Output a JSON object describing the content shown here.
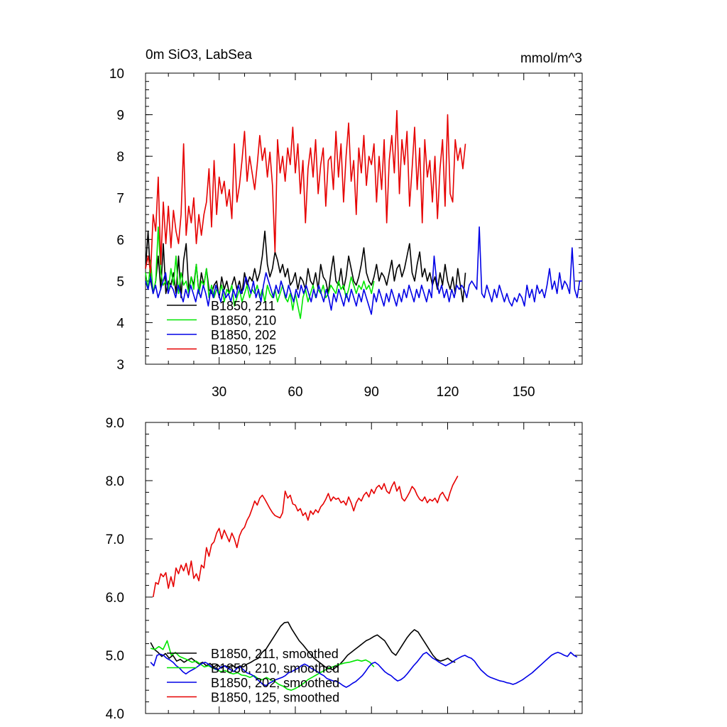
{
  "chart_data": [
    {
      "type": "line",
      "title": "0m SiO3, LabSea",
      "units": "mmol/m^3",
      "ylim": [
        3,
        10
      ],
      "xlim": [
        1,
        173
      ],
      "yticks": [
        "3",
        "4",
        "5",
        "6",
        "7",
        "8",
        "9",
        "10"
      ],
      "xticks": [
        "30",
        "60",
        "90",
        "120",
        "150"
      ],
      "legend_position": "bottom-left",
      "series": [
        {
          "name": "B1850, 211",
          "color": "#000000",
          "x_start": 1,
          "x_end": 127,
          "values": [
            5.3,
            6.2,
            5.0,
            4.7,
            5.0,
            5.6,
            4.8,
            5.9,
            4.7,
            5.0,
            4.9,
            5.2,
            4.7,
            5.6,
            4.6,
            5.5,
            5.9,
            4.8,
            5.1,
            4.9,
            5.4,
            4.7,
            5.2,
            4.9,
            5.3,
            4.8,
            4.7,
            4.9,
            5.0,
            4.6,
            5.1,
            4.8,
            5.0,
            4.7,
            4.9,
            5.1,
            4.8,
            5.0,
            4.7,
            5.2,
            4.9,
            5.1,
            5.0,
            5.3,
            5.0,
            5.2,
            5.6,
            6.2,
            5.4,
            5.1,
            5.3,
            5.7,
            5.5,
            5.2,
            5.4,
            5.1,
            5.3,
            4.9,
            5.0,
            5.2,
            4.8,
            5.1,
            5.0,
            4.8,
            5.3,
            5.0,
            4.9,
            5.2,
            4.8,
            5.4,
            5.1,
            5.0,
            4.7,
            5.2,
            5.6,
            5.0,
            4.9,
            5.3,
            4.8,
            5.1,
            5.6,
            5.3,
            5.0,
            4.9,
            5.1,
            5.4,
            5.8,
            5.2,
            5.0,
            4.9,
            5.1,
            5.4,
            5.0,
            5.2,
            5.1,
            4.9,
            5.2,
            5.5,
            5.0,
            5.3,
            5.4,
            5.1,
            5.3,
            5.6,
            5.9,
            5.2,
            5.0,
            5.4,
            5.7,
            5.1,
            5.3,
            5.0,
            5.2,
            4.9,
            5.1,
            4.8,
            5.2,
            4.9,
            5.4,
            5.0,
            4.8,
            5.1,
            4.7,
            5.3,
            4.9,
            4.5,
            5.2
          ]
        },
        {
          "name": "B1850, 210",
          "color": "#00e600",
          "x_start": 1,
          "x_end": 91,
          "values": [
            5.2,
            4.8,
            5.5,
            4.7,
            5.0,
            6.3,
            5.2,
            4.9,
            5.0,
            4.8,
            5.3,
            4.9,
            5.6,
            4.7,
            5.2,
            4.9,
            5.0,
            4.7,
            5.1,
            4.8,
            5.4,
            4.7,
            5.0,
            4.9,
            5.3,
            4.6,
            4.9,
            4.6,
            4.8,
            4.7,
            4.9,
            4.5,
            4.8,
            4.7,
            4.9,
            4.4,
            4.6,
            4.8,
            4.5,
            4.7,
            4.9,
            4.6,
            4.8,
            4.7,
            4.9,
            4.6,
            4.8,
            4.5,
            4.9,
            4.7,
            4.6,
            4.8,
            4.5,
            4.7,
            4.9,
            4.6,
            4.5,
            4.7,
            4.3,
            4.7,
            4.4,
            4.1,
            4.6,
            4.8,
            4.5,
            4.7,
            4.9,
            4.6,
            4.8,
            4.7,
            4.9,
            4.6,
            4.7,
            4.9,
            4.8,
            4.7,
            5.0,
            4.8,
            4.9,
            4.6,
            4.8,
            5.1,
            4.9,
            4.7,
            4.9,
            4.8,
            5.0,
            4.8,
            4.9,
            4.7,
            5.0
          ]
        },
        {
          "name": "B1850, 202",
          "color": "#0000e6",
          "x_start": 1,
          "x_end": 173,
          "values": [
            5.0,
            4.8,
            5.1,
            4.7,
            4.9,
            4.6,
            4.8,
            5.0,
            5.2,
            4.7,
            4.9,
            4.8,
            4.6,
            4.9,
            4.7,
            4.5,
            4.8,
            4.6,
            4.9,
            4.7,
            4.5,
            4.8,
            4.6,
            4.9,
            4.7,
            4.4,
            4.8,
            4.6,
            4.9,
            4.7,
            4.5,
            4.8,
            4.6,
            4.7,
            4.5,
            4.8,
            4.6,
            4.9,
            4.7,
            4.8,
            5.1,
            4.9,
            4.7,
            5.0,
            4.6,
            4.8,
            4.5,
            4.9,
            5.2,
            5.0,
            4.8,
            4.6,
            4.9,
            4.7,
            5.0,
            4.8,
            4.6,
            4.9,
            4.7,
            4.5,
            4.8,
            4.6,
            4.9,
            4.7,
            4.9,
            4.7,
            4.5,
            4.8,
            4.6,
            4.9,
            4.7,
            4.5,
            4.8,
            4.6,
            4.3,
            4.7,
            4.5,
            4.8,
            4.6,
            4.4,
            4.7,
            4.5,
            4.8,
            4.6,
            4.4,
            4.7,
            4.5,
            4.8,
            4.6,
            4.4,
            4.2,
            4.7,
            4.5,
            4.8,
            4.6,
            4.4,
            4.7,
            4.5,
            4.8,
            4.6,
            4.4,
            4.7,
            4.5,
            4.8,
            4.6,
            4.9,
            4.7,
            4.5,
            4.8,
            4.6,
            4.9,
            4.7,
            4.5,
            4.8,
            4.6,
            5.6,
            5.0,
            4.7,
            4.9,
            4.6,
            4.8,
            4.5,
            4.8,
            4.6,
            4.9,
            4.8,
            4.9,
            4.8,
            4.6,
            4.9,
            5.0,
            4.9,
            4.8,
            6.3,
            4.7,
            4.6,
            4.9,
            4.7,
            4.5,
            4.8,
            4.6,
            4.9,
            4.7,
            4.5,
            4.7,
            4.5,
            4.4,
            4.6,
            4.5,
            4.7,
            4.6,
            4.4,
            4.9,
            4.6,
            4.8,
            4.5,
            4.9,
            4.7,
            4.8,
            4.6,
            4.9,
            5.3,
            4.8,
            5.0,
            4.7,
            5.2,
            4.8,
            5.0,
            4.9,
            4.7,
            5.8,
            4.8,
            4.6,
            5.0,
            5.0
          ]
        },
        {
          "name": "B1850, 125",
          "color": "#e60000",
          "x_start": 1,
          "x_end": 127,
          "values": [
            5.3,
            5.6,
            5.2,
            6.6,
            6.2,
            7.5,
            5.4,
            6.9,
            5.9,
            6.8,
            5.8,
            6.7,
            6.2,
            5.9,
            6.6,
            8.3,
            6.1,
            6.8,
            6.4,
            7.0,
            5.9,
            6.6,
            6.1,
            6.6,
            6.9,
            7.7,
            6.3,
            7.9,
            6.6,
            7.5,
            7.1,
            7.4,
            6.8,
            7.2,
            6.5,
            8.3,
            6.9,
            7.3,
            7.9,
            8.6,
            7.4,
            8.0,
            7.6,
            7.2,
            7.8,
            8.5,
            7.9,
            8.2,
            7.5,
            8.1,
            7.3,
            5.7,
            8.4,
            7.6,
            8.0,
            7.4,
            8.2,
            7.8,
            8.7,
            7.6,
            8.3,
            7.1,
            7.9,
            6.4,
            7.7,
            8.2,
            7.5,
            8.4,
            7.1,
            7.8,
            8.2,
            6.8,
            7.9,
            8.0,
            7.2,
            8.6,
            7.5,
            8.3,
            6.9,
            8.0,
            8.8,
            7.4,
            7.9,
            6.6,
            8.2,
            7.6,
            8.5,
            7.3,
            8.0,
            7.8,
            8.3,
            6.9,
            8.0,
            7.2,
            8.4,
            6.4,
            7.9,
            8.5,
            7.6,
            9.1,
            7.1,
            8.4,
            7.8,
            8.6,
            6.8,
            7.7,
            8.7,
            7.2,
            8.2,
            6.4,
            8.4,
            7.5,
            7.9,
            6.9,
            8.0,
            6.5,
            7.7,
            8.4,
            6.8,
            9.0,
            7.1,
            6.9,
            8.4,
            7.9,
            8.2,
            7.7,
            8.3
          ]
        }
      ]
    },
    {
      "type": "line",
      "ylim": [
        4.0,
        9.0
      ],
      "xlim": [
        1,
        173
      ],
      "yticks": [
        "4.0",
        "5.0",
        "6.0",
        "7.0",
        "8.0",
        "9.0"
      ],
      "legend_position": "bottom-left",
      "series": [
        {
          "name": "B1850, 211, smoothed",
          "color": "#000000",
          "x_start": 3,
          "x_end": 123,
          "values": [
            5.22,
            5.1,
            5.05,
            4.98,
            5.03,
            4.95,
            5.0,
            4.9,
            4.93,
            4.88,
            4.92,
            4.95,
            4.9,
            4.85,
            4.88,
            4.82,
            4.86,
            4.8,
            4.84,
            4.78,
            4.82,
            4.8,
            4.83,
            4.78,
            4.82,
            4.8,
            4.85,
            4.88,
            4.92,
            4.95,
            5.05,
            5.1,
            5.2,
            5.3,
            5.4,
            5.5,
            5.56,
            5.57,
            5.45,
            5.35,
            5.25,
            5.18,
            5.1,
            5.02,
            4.95,
            4.9,
            4.85,
            4.8,
            4.78,
            4.75,
            4.8,
            4.85,
            4.92,
            5.0,
            5.05,
            5.1,
            5.15,
            5.2,
            5.25,
            5.28,
            5.32,
            5.35,
            5.3,
            5.25,
            5.15,
            5.05,
            5.0,
            5.1,
            5.2,
            5.3,
            5.38,
            5.44,
            5.4,
            5.3,
            5.2,
            5.1,
            5.0,
            4.93,
            4.9,
            4.92,
            4.95,
            4.9,
            4.88
          ]
        },
        {
          "name": "B1850, 210, smoothed",
          "color": "#00e600",
          "x_start": 3,
          "x_end": 91,
          "values": [
            5.12,
            5.1,
            5.15,
            5.1,
            5.25,
            5.0,
            5.05,
            4.98,
            4.95,
            4.92,
            4.88,
            4.9,
            4.85,
            4.8,
            4.82,
            4.78,
            4.75,
            4.72,
            4.74,
            4.7,
            4.68,
            4.7,
            4.66,
            4.65,
            4.62,
            4.65,
            4.6,
            4.58,
            4.62,
            4.58,
            4.55,
            4.5,
            4.47,
            4.42,
            4.4,
            4.43,
            4.47,
            4.52,
            4.58,
            4.62,
            4.66,
            4.7,
            4.74,
            4.78,
            4.8,
            4.83,
            4.85,
            4.87,
            4.88,
            4.9,
            4.92,
            4.9,
            4.92,
            4.88,
            4.8
          ]
        },
        {
          "name": "B1850, 202, smoothed",
          "color": "#0000e6",
          "x_start": 3,
          "x_end": 171,
          "values": [
            4.88,
            4.82,
            5.0,
            5.02,
            5.0,
            4.95,
            4.92,
            4.88,
            4.82,
            4.78,
            4.72,
            4.68,
            4.72,
            4.75,
            4.78,
            4.82,
            4.86,
            4.88,
            4.85,
            4.8,
            4.77,
            4.75,
            4.8,
            4.82,
            4.78,
            4.75,
            4.72,
            4.78,
            4.8,
            4.75,
            4.7,
            4.68,
            4.65,
            4.6,
            4.55,
            4.5,
            4.48,
            4.52,
            4.55,
            4.58,
            4.6,
            4.62,
            4.65,
            4.7,
            4.72,
            4.75,
            4.78,
            4.82,
            4.85,
            4.82,
            4.78,
            4.75,
            4.72,
            4.68,
            4.65,
            4.6,
            4.58,
            4.56,
            4.55,
            4.52,
            4.48,
            4.45,
            4.48,
            4.52,
            4.55,
            4.6,
            4.65,
            4.72,
            4.8,
            4.86,
            4.88,
            4.84,
            4.78,
            4.72,
            4.68,
            4.65,
            4.6,
            4.56,
            4.58,
            4.62,
            4.68,
            4.75,
            4.82,
            4.88,
            4.95,
            5.02,
            5.05,
            5.0,
            4.95,
            4.92,
            4.88,
            4.85,
            4.82,
            4.85,
            4.88,
            4.92,
            4.95,
            4.98,
            5.0,
            4.97,
            4.95,
            4.9,
            4.82,
            4.75,
            4.7,
            4.65,
            4.62,
            4.6,
            4.58,
            4.56,
            4.55,
            4.53,
            4.52,
            4.5,
            4.52,
            4.55,
            4.58,
            4.62,
            4.66,
            4.7,
            4.75,
            4.8,
            4.85,
            4.9,
            4.95,
            5.0,
            5.03,
            5.05,
            5.03,
            5.0,
            4.98,
            5.05,
            5.0,
            4.97
          ]
        },
        {
          "name": "B1850, 125, smoothed",
          "color": "#e60000",
          "x_start": 4,
          "x_end": 124,
          "values": [
            6.0,
            6.25,
            6.22,
            6.4,
            6.35,
            6.42,
            6.15,
            6.35,
            6.18,
            6.5,
            6.4,
            6.55,
            6.45,
            6.58,
            6.38,
            6.62,
            6.32,
            6.4,
            6.28,
            6.55,
            6.5,
            6.85,
            6.7,
            6.9,
            6.95,
            7.1,
            7.18,
            7.0,
            7.15,
            7.05,
            6.95,
            7.1,
            7.0,
            6.85,
            7.05,
            7.15,
            7.2,
            7.32,
            7.4,
            7.52,
            7.65,
            7.58,
            7.7,
            7.75,
            7.68,
            7.6,
            7.52,
            7.45,
            7.4,
            7.38,
            7.36,
            7.45,
            7.82,
            7.7,
            7.75,
            7.6,
            7.58,
            7.48,
            7.52,
            7.4,
            7.45,
            7.32,
            7.48,
            7.42,
            7.5,
            7.45,
            7.55,
            7.6,
            7.68,
            7.78,
            7.65,
            7.72,
            7.68,
            7.7,
            7.62,
            7.65,
            7.58,
            7.72,
            7.62,
            7.48,
            7.62,
            7.7,
            7.65,
            7.75,
            7.8,
            7.72,
            7.85,
            7.78,
            7.88,
            7.92,
            7.85,
            7.95,
            7.82,
            7.78,
            7.9,
            7.98,
            7.82,
            7.9,
            7.7,
            7.65,
            7.72,
            7.8,
            7.9,
            7.85,
            7.75,
            7.68,
            7.65,
            7.72,
            7.62,
            7.68,
            7.65,
            7.7,
            7.62,
            7.75,
            7.8,
            7.72,
            7.65,
            7.8,
            7.92,
            8.0,
            8.08
          ]
        }
      ]
    }
  ]
}
